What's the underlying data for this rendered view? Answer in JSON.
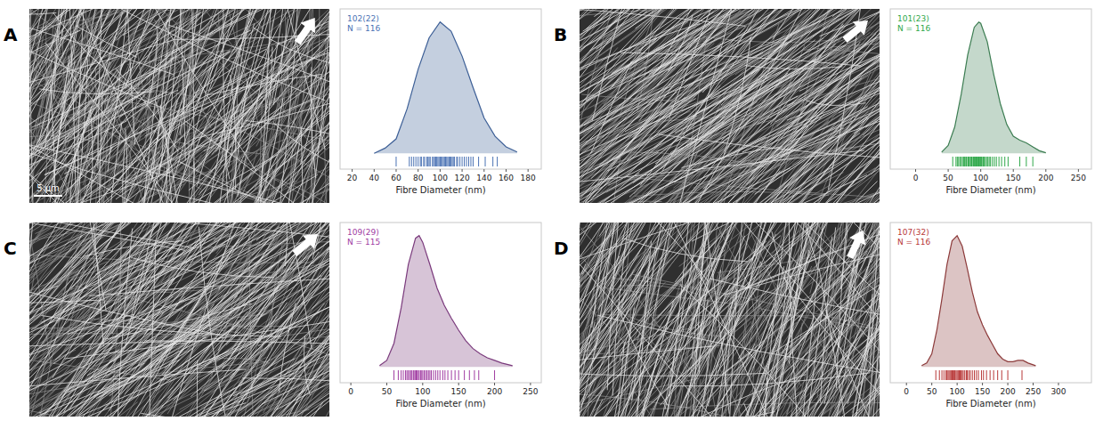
{
  "chart_data": [
    {
      "type": "density",
      "title": "A",
      "x_label": "Fibre Diameter (nm)",
      "annotations": [
        "102(22)",
        "N = 116"
      ],
      "scale_bar_label": "5 µm",
      "xlim": [
        9,
        192
      ],
      "xticks": [
        20,
        40,
        60,
        80,
        100,
        120,
        140,
        160,
        180
      ],
      "ylim": [
        -0.12,
        1.1
      ],
      "tick_labels": "x",
      "series": [
        {
          "type": "area",
          "color": "#3d5f96",
          "x": [
            40,
            50,
            60,
            70,
            80,
            90,
            100,
            110,
            120,
            130,
            140,
            150,
            160,
            170
          ],
          "values": [
            0.0,
            0.04,
            0.11,
            0.34,
            0.64,
            0.88,
            1.0,
            0.93,
            0.74,
            0.5,
            0.27,
            0.13,
            0.05,
            0.01
          ]
        },
        {
          "type": "rug",
          "color": "#4a72b4",
          "x": [
            60,
            72,
            74,
            76,
            78,
            80,
            82,
            83,
            85,
            86,
            88,
            89,
            90,
            91,
            93,
            94,
            95,
            96,
            97,
            98,
            99,
            100,
            101,
            102,
            103,
            104,
            105,
            106,
            107,
            108,
            109,
            110,
            111,
            112,
            113,
            115,
            116,
            118,
            120,
            122,
            124,
            126,
            128,
            130,
            135,
            141,
            148,
            152
          ]
        }
      ]
    },
    {
      "type": "density",
      "title": "B",
      "x_label": "Fibre Diameter (nm)",
      "annotations": [
        "101(23)",
        "N = 116"
      ],
      "xlim": [
        -39,
        270
      ],
      "xticks": [
        0,
        50,
        100,
        150,
        200,
        250
      ],
      "ylim": [
        -0.12,
        1.1
      ],
      "tick_labels": "x",
      "series": [
        {
          "type": "area",
          "color": "#3c7d52",
          "x": [
            40,
            50,
            60,
            70,
            80,
            90,
            97,
            100,
            110,
            120,
            130,
            140,
            150,
            160,
            170,
            180,
            190,
            200
          ],
          "values": [
            0.01,
            0.06,
            0.2,
            0.45,
            0.75,
            0.96,
            1.0,
            0.99,
            0.85,
            0.6,
            0.38,
            0.22,
            0.13,
            0.1,
            0.08,
            0.05,
            0.02,
            0.005
          ]
        },
        {
          "type": "rug",
          "color": "#2fa84a",
          "x": [
            57,
            62,
            64,
            66,
            68,
            70,
            72,
            74,
            75,
            77,
            78,
            80,
            81,
            82,
            84,
            85,
            86,
            88,
            89,
            90,
            91,
            92,
            93,
            94,
            95,
            96,
            97,
            98,
            99,
            100,
            101,
            102,
            104,
            105,
            107,
            109,
            111,
            113,
            115,
            118,
            121,
            124,
            128,
            132,
            137,
            142,
            160,
            170,
            180
          ]
        }
      ]
    },
    {
      "type": "density",
      "title": "C",
      "x_label": "Fibre Diameter (nm)",
      "annotations": [
        "109(29)",
        "N = 115"
      ],
      "xlim": [
        -15,
        265
      ],
      "xticks": [
        0,
        50,
        100,
        150,
        200,
        250
      ],
      "ylim": [
        -0.12,
        1.1
      ],
      "tick_labels": "x",
      "series": [
        {
          "type": "area",
          "color": "#7a3a7c",
          "x": [
            40,
            50,
            60,
            70,
            80,
            90,
            95,
            100,
            110,
            120,
            130,
            140,
            150,
            160,
            170,
            180,
            190,
            200,
            210,
            225
          ],
          "values": [
            0.01,
            0.05,
            0.18,
            0.45,
            0.78,
            0.98,
            1.0,
            0.95,
            0.78,
            0.6,
            0.47,
            0.37,
            0.28,
            0.2,
            0.14,
            0.1,
            0.07,
            0.05,
            0.03,
            0.01
          ]
        },
        {
          "type": "rug",
          "color": "#a03ca2",
          "x": [
            60,
            66,
            70,
            73,
            76,
            78,
            80,
            82,
            84,
            85,
            87,
            88,
            90,
            91,
            92,
            94,
            95,
            97,
            98,
            100,
            102,
            104,
            106,
            108,
            110,
            112,
            115,
            118,
            121,
            124,
            128,
            131,
            135,
            140,
            145,
            150,
            158,
            165,
            172,
            178,
            200
          ]
        }
      ]
    },
    {
      "type": "density",
      "title": "D",
      "x_label": "Fibre Diameter (nm)",
      "annotations": [
        "107(32)",
        "N = 116"
      ],
      "xlim": [
        -32,
        365
      ],
      "xticks": [
        0,
        50,
        100,
        150,
        200,
        250,
        300
      ],
      "ylim": [
        -0.12,
        1.1
      ],
      "tick_labels": "x",
      "series": [
        {
          "type": "area",
          "color": "#8c3a3a",
          "x": [
            30,
            40,
            50,
            60,
            70,
            80,
            90,
            100,
            110,
            120,
            130,
            140,
            150,
            160,
            170,
            180,
            190,
            200,
            210,
            220,
            230,
            240,
            255
          ],
          "values": [
            0.01,
            0.03,
            0.1,
            0.28,
            0.52,
            0.78,
            0.96,
            1.0,
            0.92,
            0.75,
            0.57,
            0.42,
            0.32,
            0.24,
            0.17,
            0.1,
            0.06,
            0.04,
            0.04,
            0.05,
            0.05,
            0.03,
            0.01
          ]
        },
        {
          "type": "rug",
          "color": "#b83838",
          "x": [
            58,
            65,
            70,
            74,
            78,
            80,
            82,
            84,
            86,
            88,
            90,
            92,
            94,
            95,
            96,
            98,
            100,
            102,
            104,
            106,
            108,
            110,
            112,
            115,
            118,
            120,
            123,
            126,
            130,
            134,
            138,
            142,
            148,
            152,
            158,
            165,
            172,
            180,
            188,
            200,
            228
          ]
        }
      ]
    }
  ]
}
